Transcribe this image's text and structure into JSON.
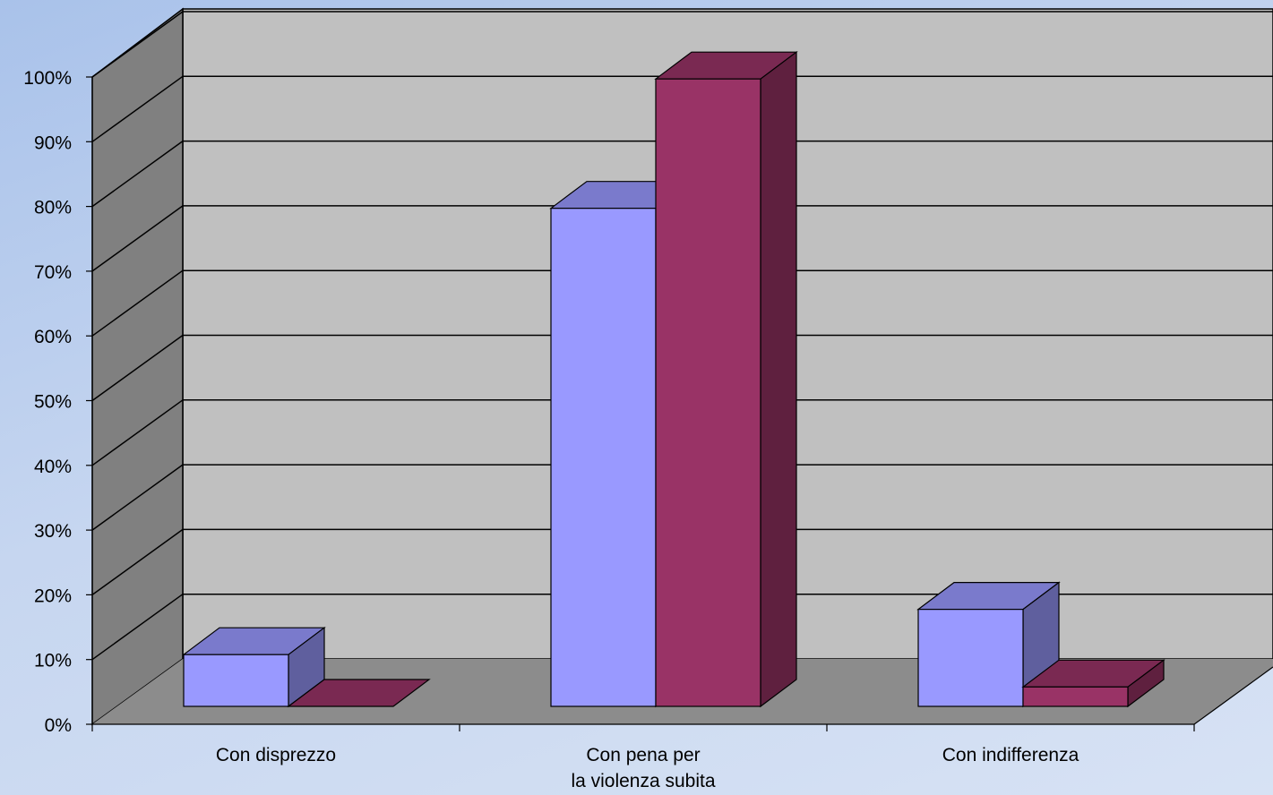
{
  "chart_data": {
    "type": "bar",
    "style": "3d-clustered",
    "categories": [
      [
        "Con disprezzo"
      ],
      [
        "Con pena per",
        "la violenza subita"
      ],
      [
        "Con indifferenza"
      ]
    ],
    "series": [
      {
        "values": [
          8,
          77,
          15
        ],
        "color": "#9999ff"
      },
      {
        "values": [
          0,
          97,
          3
        ],
        "color": "#993366"
      }
    ],
    "ylim": [
      0,
      100
    ],
    "yticks": [
      "0%",
      "10%",
      "20%",
      "30%",
      "40%",
      "50%",
      "60%",
      "70%",
      "80%",
      "90%",
      "100%"
    ],
    "grid": true,
    "legend": "none",
    "colors": {
      "back_wall": "#c0c0c0",
      "side_wall": "#808080",
      "floor": "#8c8c8c"
    }
  }
}
